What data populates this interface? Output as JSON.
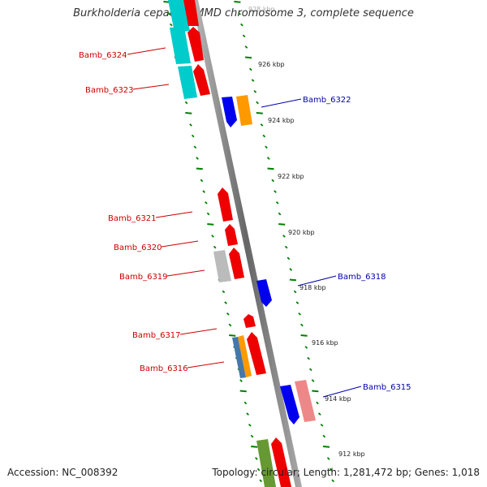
{
  "title": "Burkholderia cepacia AMMD chromosome 3, complete sequence",
  "footer": {
    "accession": "Accession: NC_008392",
    "topology": "Topology: circular; Length: 1,281,472 bp; Genes: 1,018"
  },
  "tick_labels": [
    "928 kbp",
    "926 kbp",
    "924 kbp",
    "922 kbp",
    "920 kbp",
    "918 kbp",
    "916 kbp",
    "914 kbp",
    "912 kbp"
  ],
  "gene_labels_left": [
    "Bamb_6324",
    "Bamb_6323",
    "Bamb_6321",
    "Bamb_6320",
    "Bamb_6319",
    "Bamb_6317",
    "Bamb_6316"
  ],
  "gene_labels_right": [
    "Bamb_6322",
    "Bamb_6318",
    "Bamb_6315"
  ],
  "colors": {
    "backbone": "#888888",
    "ticks": "#008000",
    "left_label": "#cc0000",
    "right_label": "#0000aa",
    "red_gene": "#ee0000",
    "cyan_gene": "#00cccc",
    "blue_gene": "#0000ee",
    "orange_gene": "#ff9900",
    "grey_gene": "#bbbbbb",
    "pink_gene": "#ee8888",
    "steelblue_gene": "#4477aa",
    "olive_gene": "#669933"
  }
}
